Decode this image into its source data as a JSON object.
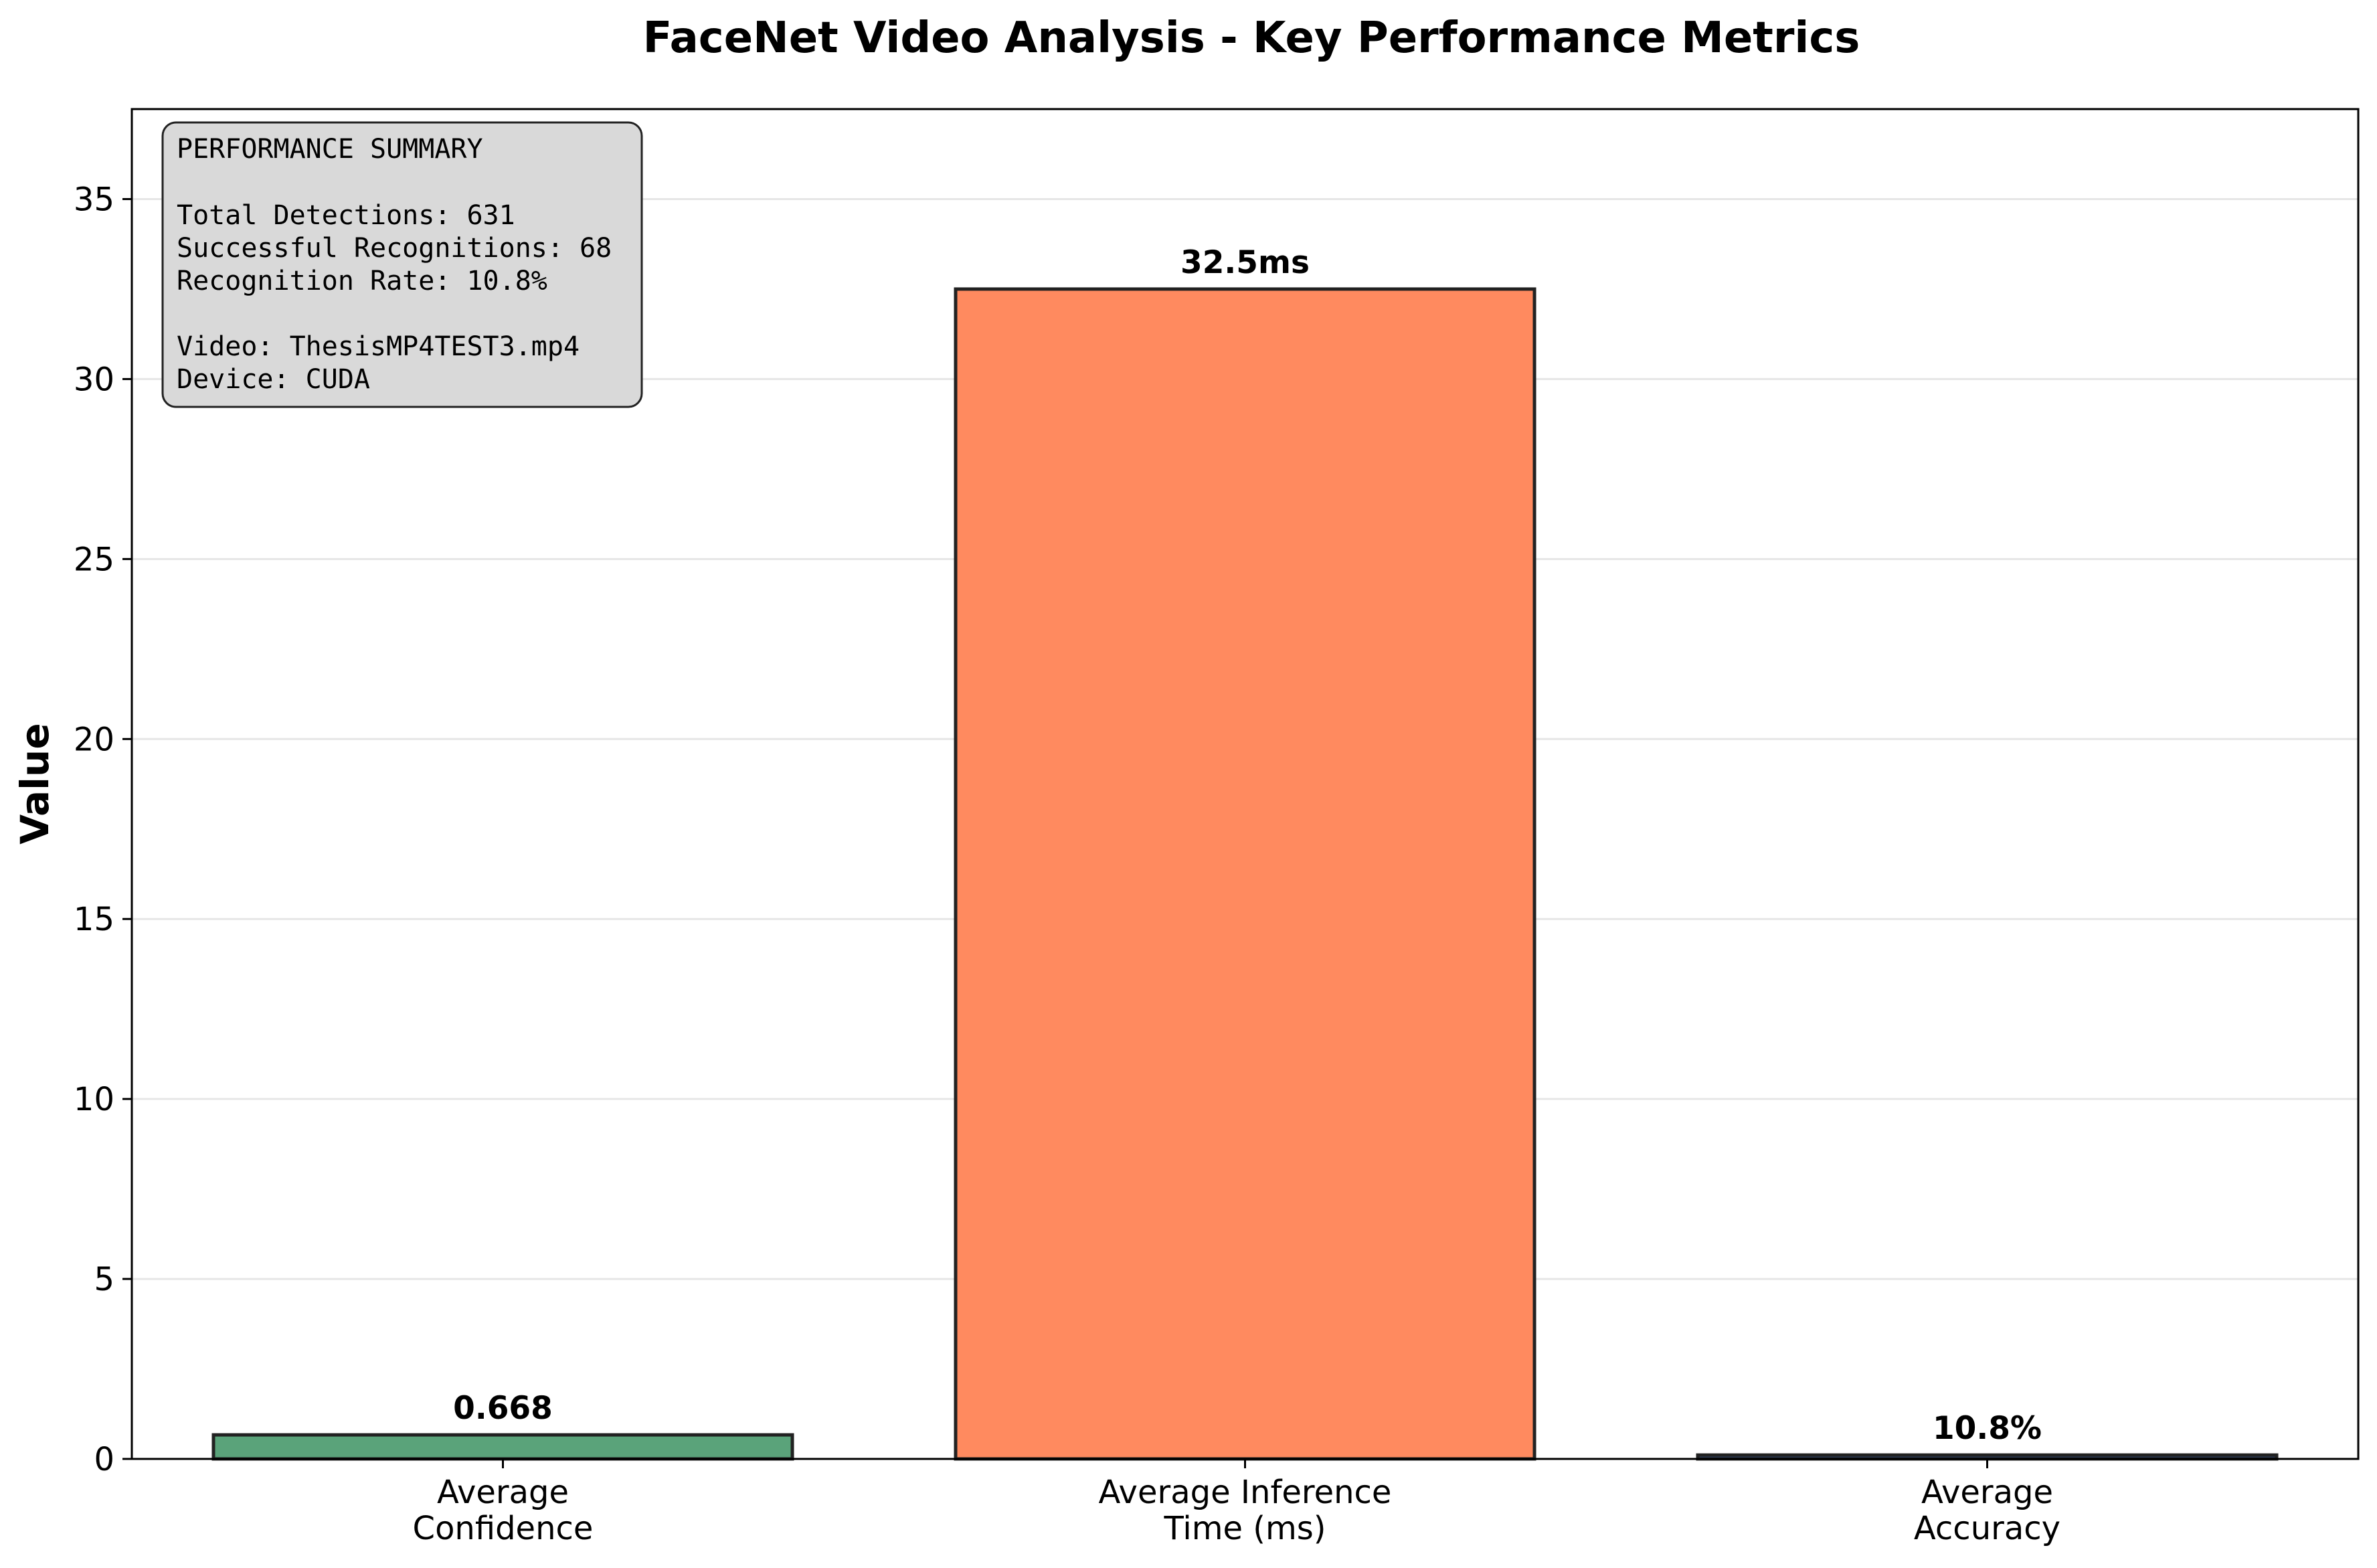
{
  "chart_data": {
    "type": "bar",
    "title": "FaceNet Video Analysis - Key Performance Metrics",
    "xlabel": "",
    "ylabel": "Value",
    "ylim": [
      0,
      37.5
    ],
    "yticks": [
      "0",
      "5",
      "10",
      "15",
      "20",
      "25",
      "30",
      "35"
    ],
    "grid": "horizontal",
    "categories": [
      [
        "Average",
        "Confidence"
      ],
      [
        "Average Inference",
        "Time (ms)"
      ],
      [
        "Average",
        "Accuracy"
      ]
    ],
    "values": [
      0.668,
      32.5,
      0.108
    ],
    "value_labels": [
      "0.668",
      "32.5ms",
      "10.8%"
    ],
    "colors": [
      "#5aa37a",
      "#ff8a5f",
      "#2e4a7a"
    ]
  },
  "summary_box": {
    "heading": "PERFORMANCE SUMMARY",
    "lines": [
      "Total Detections: 631",
      "Successful Recognitions: 68",
      "Recognition Rate: 10.8%"
    ],
    "video_line": "Video: ThesisMP4TEST3.mp4",
    "device_line": "Device: CUDA"
  },
  "colors": {
    "background": "#ffffff",
    "grid": "#e6e6e6",
    "bar_edge": "#222222",
    "summary_fill": "#d9d9d9"
  }
}
